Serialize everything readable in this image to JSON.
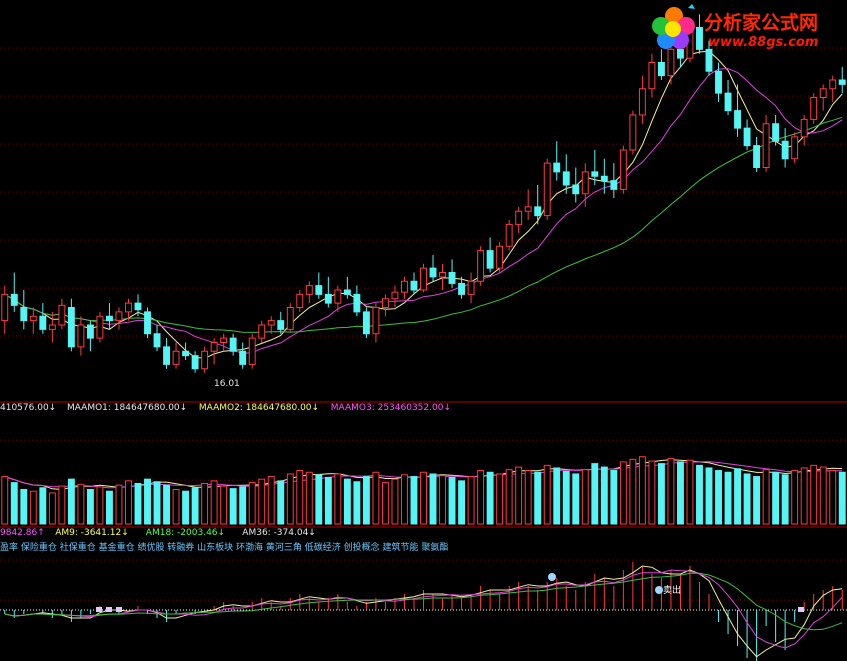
{
  "colors": {
    "up": "#ff3b3b",
    "down": "#53f5f5",
    "ma_fast": "#f3f3a0",
    "ma_mid": "#e040e0",
    "ma_slow": "#3fbf3f",
    "grid": "#7a0000",
    "separator": "#b00000",
    "text_white": "#e8e8e8",
    "text_magenta": "#ff55ff",
    "text_yellow": "#ffff55",
    "text_green": "#55ff55"
  },
  "watermark": {
    "name": "分析家公式网",
    "url": "www.88gs.com",
    "icon": "flower-logo-icon"
  },
  "price_panel": {
    "low_label": "16.01"
  },
  "volume_panel": {
    "header": [
      {
        "text": "410576.00",
        "arrow": "↓",
        "color": "#e8e8e8"
      },
      {
        "text": "MAAMO1: 184647680.00",
        "arrow": "↓",
        "color": "#e8e8e8"
      },
      {
        "text": "MAAMO2: 184647680.00",
        "arrow": "↓",
        "color": "#ffff55"
      },
      {
        "text": "MAAMO3: 253460352.00",
        "arrow": "↓",
        "color": "#ff55ff"
      }
    ]
  },
  "indicator_panel": {
    "header": [
      {
        "text": "9842.86",
        "arrow": "↑",
        "color": "#ff55ff"
      },
      {
        "text": "AM9: -3641.12",
        "arrow": "↓",
        "color": "#ffff55"
      },
      {
        "text": "AM18: -2003.46",
        "arrow": "↓",
        "color": "#55ff55"
      },
      {
        "text": "AM36: -374.04",
        "arrow": "↓",
        "color": "#e8e8e8"
      }
    ],
    "concepts": "盈率 保险重仓 社保重仓 基金重仓 绩优股 转融券 山东板块 环渤海 黄河三角 低碳经济 创投概念 建筑节能 聚氨酯",
    "marker_text": "卖出"
  },
  "chart_data": {
    "type": "candlestick",
    "candles_ohlc": [
      [
        17.2,
        18.0,
        16.9,
        17.8
      ],
      [
        17.8,
        18.3,
        17.4,
        17.55
      ],
      [
        17.5,
        17.9,
        17.0,
        17.2
      ],
      [
        17.2,
        17.5,
        16.9,
        17.3
      ],
      [
        17.3,
        17.6,
        16.9,
        17.0
      ],
      [
        17.0,
        17.4,
        16.7,
        17.1
      ],
      [
        17.1,
        17.7,
        17.0,
        17.55
      ],
      [
        17.5,
        17.7,
        16.5,
        16.6
      ],
      [
        16.6,
        17.3,
        16.4,
        17.1
      ],
      [
        17.1,
        17.2,
        16.5,
        16.8
      ],
      [
        16.8,
        17.4,
        16.7,
        17.3
      ],
      [
        17.3,
        17.6,
        17.0,
        17.2
      ],
      [
        17.2,
        17.5,
        17.0,
        17.4
      ],
      [
        17.4,
        17.7,
        17.2,
        17.6
      ],
      [
        17.6,
        17.8,
        17.3,
        17.45
      ],
      [
        17.4,
        17.5,
        16.8,
        16.9
      ],
      [
        16.9,
        17.1,
        16.5,
        16.6
      ],
      [
        16.6,
        16.8,
        16.1,
        16.2
      ],
      [
        16.2,
        16.7,
        16.1,
        16.5
      ],
      [
        16.5,
        16.7,
        16.3,
        16.4
      ],
      [
        16.4,
        16.5,
        16.01,
        16.1
      ],
      [
        16.1,
        16.6,
        16.01,
        16.5
      ],
      [
        16.5,
        16.8,
        16.2,
        16.7
      ],
      [
        16.7,
        16.9,
        16.5,
        16.8
      ],
      [
        16.8,
        16.9,
        16.4,
        16.5
      ],
      [
        16.5,
        16.7,
        16.1,
        16.2
      ],
      [
        16.2,
        16.9,
        16.1,
        16.8
      ],
      [
        16.8,
        17.2,
        16.7,
        17.1
      ],
      [
        17.1,
        17.3,
        16.9,
        17.2
      ],
      [
        17.2,
        17.4,
        16.9,
        17.0
      ],
      [
        17.0,
        17.6,
        16.95,
        17.5
      ],
      [
        17.5,
        17.9,
        17.4,
        17.8
      ],
      [
        17.8,
        18.1,
        17.6,
        18.0
      ],
      [
        18.0,
        18.3,
        17.7,
        17.8
      ],
      [
        17.8,
        18.2,
        17.5,
        17.6
      ],
      [
        17.6,
        18.0,
        17.4,
        17.9
      ],
      [
        17.9,
        18.2,
        17.7,
        17.8
      ],
      [
        17.8,
        18.0,
        17.3,
        17.4
      ],
      [
        17.4,
        17.5,
        16.8,
        16.9
      ],
      [
        16.9,
        17.6,
        16.7,
        17.5
      ],
      [
        17.5,
        17.8,
        17.3,
        17.7
      ],
      [
        17.7,
        18.0,
        17.5,
        17.85
      ],
      [
        17.85,
        18.2,
        17.7,
        18.1
      ],
      [
        18.1,
        18.3,
        17.8,
        17.9
      ],
      [
        17.9,
        18.5,
        17.85,
        18.4
      ],
      [
        18.4,
        18.7,
        18.1,
        18.2
      ],
      [
        18.2,
        18.5,
        17.9,
        18.3
      ],
      [
        18.3,
        18.6,
        17.95,
        18.05
      ],
      [
        18.05,
        18.2,
        17.7,
        17.8
      ],
      [
        17.8,
        18.3,
        17.6,
        18.1
      ],
      [
        18.1,
        18.9,
        18.0,
        18.8
      ],
      [
        18.8,
        19.1,
        18.3,
        18.4
      ],
      [
        18.4,
        19.0,
        18.3,
        18.9
      ],
      [
        18.9,
        19.5,
        18.8,
        19.4
      ],
      [
        19.4,
        19.8,
        19.2,
        19.7
      ],
      [
        19.7,
        20.2,
        19.5,
        19.8
      ],
      [
        19.8,
        20.3,
        19.4,
        19.6
      ],
      [
        19.6,
        20.9,
        19.5,
        20.8
      ],
      [
        20.8,
        21.3,
        20.4,
        20.6
      ],
      [
        20.6,
        21.0,
        20.1,
        20.3
      ],
      [
        20.3,
        20.7,
        19.9,
        20.1
      ],
      [
        20.1,
        20.8,
        19.8,
        20.6
      ],
      [
        20.6,
        21.1,
        20.3,
        20.5
      ],
      [
        20.5,
        20.9,
        20.1,
        20.4
      ],
      [
        20.4,
        20.8,
        20.0,
        20.2
      ],
      [
        20.2,
        21.2,
        20.1,
        21.1
      ],
      [
        21.1,
        22.0,
        21.0,
        21.9
      ],
      [
        21.9,
        22.8,
        21.7,
        22.5
      ],
      [
        22.5,
        23.3,
        22.3,
        23.1
      ],
      [
        23.1,
        23.4,
        22.7,
        22.8
      ],
      [
        22.8,
        23.6,
        22.6,
        23.4
      ],
      [
        23.4,
        23.7,
        23.0,
        23.2
      ],
      [
        23.2,
        24.1,
        23.1,
        23.9
      ],
      [
        23.9,
        24.2,
        23.3,
        23.4
      ],
      [
        23.4,
        23.6,
        22.8,
        22.9
      ],
      [
        22.9,
        23.1,
        22.2,
        22.4
      ],
      [
        22.4,
        22.7,
        21.9,
        22.0
      ],
      [
        22.0,
        22.6,
        21.4,
        21.6
      ],
      [
        21.6,
        21.8,
        21.1,
        21.2
      ],
      [
        21.2,
        21.4,
        20.6,
        20.7
      ],
      [
        20.7,
        21.9,
        20.6,
        21.7
      ],
      [
        21.7,
        21.9,
        21.2,
        21.3
      ],
      [
        21.3,
        21.6,
        20.7,
        20.9
      ],
      [
        20.9,
        21.5,
        20.8,
        21.4
      ],
      [
        21.4,
        21.9,
        21.2,
        21.8
      ],
      [
        21.8,
        22.4,
        21.7,
        22.3
      ],
      [
        22.3,
        22.6,
        22.0,
        22.5
      ],
      [
        22.5,
        22.8,
        22.2,
        22.7
      ],
      [
        22.7,
        23.0,
        22.4,
        22.6
      ]
    ],
    "volume": [
      55,
      48,
      40,
      38,
      42,
      36,
      44,
      52,
      46,
      40,
      43,
      38,
      45,
      50,
      47,
      52,
      49,
      45,
      40,
      38,
      42,
      47,
      50,
      44,
      41,
      43,
      48,
      52,
      55,
      50,
      58,
      62,
      60,
      57,
      54,
      58,
      52,
      49,
      55,
      60,
      48,
      52,
      57,
      55,
      60,
      58,
      56,
      54,
      50,
      55,
      62,
      60,
      58,
      63,
      66,
      62,
      60,
      68,
      65,
      61,
      58,
      63,
      70,
      66,
      62,
      72,
      75,
      78,
      73,
      70,
      76,
      72,
      74,
      68,
      65,
      62,
      60,
      64,
      58,
      55,
      63,
      60,
      57,
      62,
      65,
      68,
      66,
      62,
      60
    ],
    "indicator": [
      -1,
      -2,
      -1,
      0,
      -1,
      -2,
      -1,
      -3,
      -2,
      -1,
      1,
      0,
      -1,
      0,
      1,
      -1,
      -2,
      -3,
      -1,
      0,
      -1,
      0,
      1,
      2,
      1,
      0,
      2,
      3,
      2,
      1,
      3,
      4,
      3,
      2,
      3,
      4,
      2,
      1,
      2,
      3,
      2,
      3,
      4,
      3,
      5,
      4,
      3,
      4,
      3,
      4,
      6,
      5,
      4,
      6,
      7,
      6,
      5,
      7,
      8,
      6,
      5,
      7,
      9,
      8,
      6,
      10,
      12,
      11,
      9,
      8,
      10,
      9,
      11,
      7,
      4,
      -3,
      -6,
      -9,
      -12,
      -14,
      -4,
      -8,
      -10,
      -3,
      2,
      4,
      5,
      6,
      5
    ],
    "price_ylim": [
      15.5,
      24.3
    ]
  }
}
